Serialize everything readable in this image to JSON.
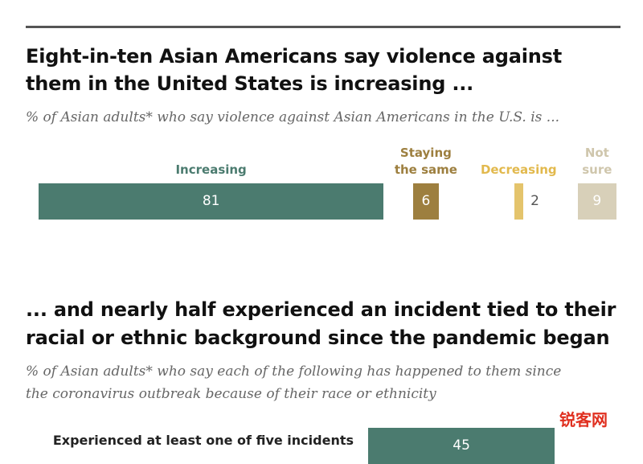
{
  "chart_data": [
    {
      "type": "bar",
      "title": [
        "Eight-in-ten Asian Americans say violence against",
        "them in the United States is increasing ..."
      ],
      "subtitle": "% of Asian adults* who say violence against Asian Americans in the U.S. is ...",
      "categories": [
        "Increasing",
        "Staying the same",
        "Decreasing",
        "Not sure"
      ],
      "values": [
        81,
        6,
        2,
        9
      ],
      "colors": [
        "#4b7b6f",
        "#9d7f3f",
        "#e4c46c",
        "#d8d0b9"
      ],
      "label_colors": [
        "#4b7b6f",
        "#9d7f3f",
        "#e2b94d",
        "#cfc6ac"
      ]
    },
    {
      "type": "bar",
      "title": [
        "... and nearly half experienced an incident tied to their",
        "racial or ethnic background since the pandemic began"
      ],
      "subtitle": [
        "% of Asian adults* who say each of the following has happened to them since",
        "the coronavirus outbreak because of their race or ethnicity"
      ],
      "categories": [
        "Experienced at least one of five incidents"
      ],
      "values": [
        45
      ],
      "colors": [
        "#4b7b6f"
      ]
    }
  ],
  "watermark": "锐客网"
}
